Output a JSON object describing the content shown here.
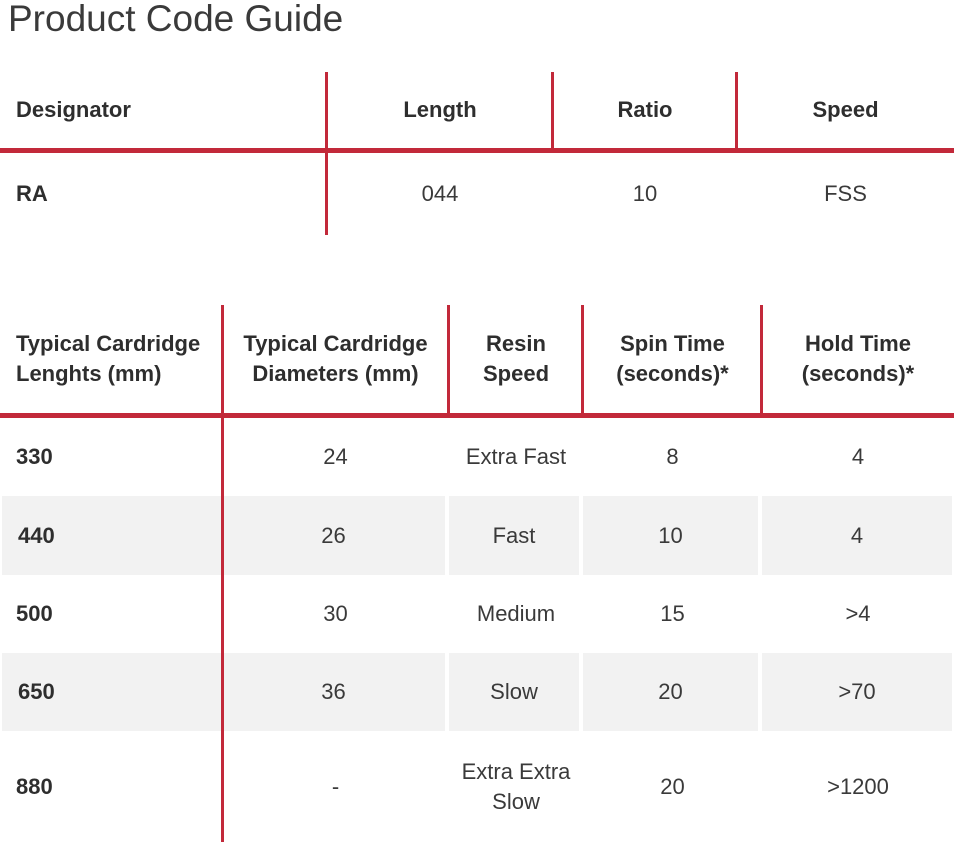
{
  "page": {
    "title": "Product Code Guide"
  },
  "theme": {
    "accent_red": "#c2293a",
    "stripe_gray": "#f2f2f2",
    "heading_text": "#2e2e2e",
    "body_text": "#3a3a3a",
    "background": "#ffffff"
  },
  "product_code_table": {
    "columns": [
      "Designator",
      "Length",
      "Ratio",
      "Speed"
    ],
    "rows": [
      [
        "RA",
        "044",
        "10",
        "FSS"
      ]
    ]
  },
  "cartridge_table": {
    "columns": [
      "Typical Cardridge Lenghts (mm)",
      "Typical Cardridge Diameters (mm)",
      "Resin Speed",
      "Spin Time (seconds)*",
      "Hold Time (seconds)*"
    ],
    "rows": [
      [
        "330",
        "24",
        "Extra Fast",
        "8",
        "4"
      ],
      [
        "440",
        "26",
        "Fast",
        "10",
        "4"
      ],
      [
        "500",
        "30",
        "Medium",
        "15",
        ">4"
      ],
      [
        "650",
        "36",
        "Slow",
        "20",
        ">70"
      ],
      [
        "880",
        "-",
        "Extra Extra Slow",
        "20",
        ">1200"
      ]
    ]
  }
}
